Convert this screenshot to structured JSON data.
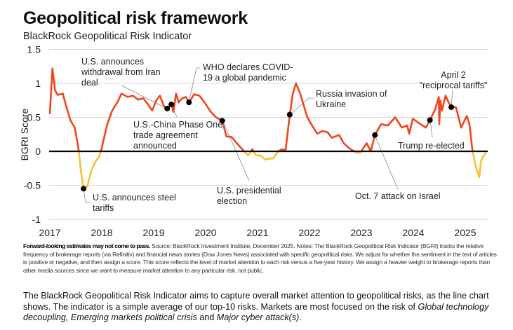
{
  "title": "Geopolitical risk framework",
  "subtitle": "BlackRock Geopolitical Risk Indicator",
  "chart_data": {
    "type": "line",
    "title": "Geopolitical risk framework",
    "subtitle": "BlackRock Geopolitical Risk Indicator",
    "ylabel": "BGRI Score",
    "xlabel": "",
    "xlim": [
      2017,
      2025.45
    ],
    "ylim": [
      -1,
      1.5
    ],
    "yticks": [
      1.5,
      1,
      0.5,
      0,
      -0.5,
      -1
    ],
    "ytick_labels": [
      "1.5",
      "1",
      "0.5",
      "0",
      "-0.5",
      "-1"
    ],
    "xticks": [
      2017,
      2018,
      2019,
      2020,
      2021,
      2022,
      2023,
      2024,
      2025
    ],
    "xtick_labels": [
      "2017",
      "2018",
      "2019",
      "2020",
      "2021",
      "2022",
      "2023",
      "2024",
      "2025"
    ],
    "grid": true,
    "colors": {
      "positive": "#f0461e",
      "negative": "#f5c330",
      "zero_line": "#000000",
      "grid": "#d9d9d9"
    },
    "series": [
      {
        "name": "BGRI Score",
        "x": [
          2017.0,
          2017.05,
          2017.1,
          2017.15,
          2017.25,
          2017.32,
          2017.4,
          2017.48,
          2017.55,
          2017.6,
          2017.65,
          2017.72,
          2017.8,
          2017.88,
          2017.95,
          2018.0,
          2018.1,
          2018.2,
          2018.3,
          2018.38,
          2018.5,
          2018.6,
          2018.7,
          2018.8,
          2018.9,
          2018.97,
          2019.05,
          2019.12,
          2019.2,
          2019.26,
          2019.34,
          2019.38,
          2019.43,
          2019.48,
          2019.55,
          2019.62,
          2019.68,
          2019.78,
          2019.88,
          2019.98,
          2020.1,
          2020.2,
          2020.32,
          2020.4,
          2020.5,
          2020.6,
          2020.72,
          2020.82,
          2020.9,
          2020.97,
          2021.05,
          2021.15,
          2021.3,
          2021.4,
          2021.47,
          2021.54,
          2021.62,
          2021.68,
          2021.74,
          2021.82,
          2021.96,
          2022.05,
          2022.15,
          2022.25,
          2022.35,
          2022.43,
          2022.57,
          2022.66,
          2022.76,
          2022.9,
          2022.98,
          2023.1,
          2023.18,
          2023.26,
          2023.38,
          2023.51,
          2023.65,
          2023.78,
          2023.88,
          2023.92,
          2023.99,
          2024.1,
          2024.24,
          2024.32,
          2024.42,
          2024.49,
          2024.5,
          2024.52,
          2024.55,
          2024.62,
          2024.68,
          2024.73,
          2024.82,
          2024.92,
          2025.03,
          2025.08,
          2025.14,
          2025.2,
          2025.27,
          2025.3,
          2025.34,
          2025.4
        ],
        "y": [
          0.55,
          1.22,
          0.9,
          0.83,
          0.85,
          0.65,
          0.45,
          0.35,
          0.05,
          -0.3,
          -0.55,
          -0.52,
          -0.28,
          -0.15,
          -0.08,
          0.05,
          0.38,
          0.6,
          0.72,
          0.85,
          0.8,
          0.82,
          0.76,
          0.78,
          0.68,
          0.6,
          0.75,
          0.82,
          0.66,
          0.63,
          0.69,
          0.58,
          0.85,
          0.72,
          0.78,
          0.8,
          0.72,
          0.84,
          0.82,
          0.72,
          0.58,
          0.5,
          0.45,
          0.22,
          0.21,
          0.12,
          0.02,
          -0.06,
          0.03,
          -0.06,
          -0.06,
          -0.12,
          -0.1,
          0.0,
          0.03,
          0.02,
          0.54,
          0.85,
          1.0,
          0.85,
          0.5,
          0.38,
          0.26,
          0.3,
          0.28,
          0.2,
          0.24,
          0.12,
          0.05,
          -0.02,
          -0.02,
          0.12,
          0.0,
          0.24,
          0.4,
          0.38,
          0.5,
          0.35,
          0.38,
          0.26,
          0.48,
          0.42,
          0.35,
          0.46,
          0.62,
          0.8,
          0.4,
          0.75,
          0.6,
          0.82,
          0.72,
          0.65,
          0.65,
          0.35,
          0.52,
          0.4,
          0.0,
          -0.22,
          -0.38,
          -0.15,
          -0.08,
          -0.02
        ]
      }
    ],
    "annotations": [
      {
        "lines": [
          "U.S. announces",
          "withdrawal from Iran",
          "deal"
        ],
        "x": 2019.26,
        "y": 0.63
      },
      {
        "lines": [
          "U.S.-China Phase One",
          "trade agreement",
          "announced"
        ],
        "x": 2019.34,
        "y": 0.69
      },
      {
        "lines": [
          "WHO declares COVID-",
          "19 a global pandemic"
        ],
        "x": 2019.68,
        "y": 0.72
      },
      {
        "lines": [
          "U.S. presidential",
          "election"
        ],
        "x": 2020.32,
        "y": 0.45
      },
      {
        "lines": [
          "U.S. announces steel",
          "tariffs"
        ],
        "x": 2017.65,
        "y": -0.55
      },
      {
        "lines": [
          "Russia invasion of",
          "Ukraine"
        ],
        "x": 2021.62,
        "y": 0.54
      },
      {
        "lines": [
          "Oct. 7 attack on Israel"
        ],
        "x": 2023.26,
        "y": 0.24
      },
      {
        "lines": [
          "Trump re-elected"
        ],
        "x": 2024.32,
        "y": 0.46
      },
      {
        "lines": [
          "April 2",
          "\"reciprocal tariffs\""
        ],
        "x": 2024.73,
        "y": 0.65
      }
    ]
  },
  "footnote": {
    "bold": "Forward-looking estimates may not come to pass.",
    "text": " Source: BlackRock Investment Institute, December 2025. Notes: The BlackRock Geopolitical Risk Indicator (BGRI) tracks the relative frequency of brokerage reports (via Refinitiv) and financial news stories (Dow Jones News) associated with specific geopolitical risks. We adjust for whether the sentiment in the text of articles is positive or negative, and then assign a score. This score reflects the level of market attention to each risk versus a five-year history. We assign a heavier weight to brokerage reports than other media sources since we want to measure market attention to any particular risk, not public."
  },
  "body": {
    "text1": "The BlackRock Geopolitical Risk Indicator aims to capture overall market attention to geopolitical risks, as the line chart shows. The indicator is a simple average of our top-10 risks. Markets are most focused on the risk of ",
    "italic1": "Global technology decoupling, Emerging markets political crisis",
    "text2": " and ",
    "italic2": "Major cyber attack(s)",
    "text3": "."
  }
}
